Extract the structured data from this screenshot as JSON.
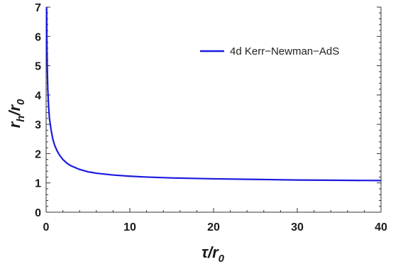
{
  "chart_data": {
    "type": "line",
    "xlabel": "τ/r",
    "xlabel_sub": "0",
    "ylabel": "r",
    "ylabel_sub_num": "h",
    "ylabel_mid": "/r",
    "ylabel_sub_den": "0",
    "xlim": [
      0,
      40
    ],
    "ylim": [
      0,
      7
    ],
    "x_ticks": [
      0,
      10,
      20,
      30,
      40
    ],
    "x_tick_labels": [
      "0",
      "10",
      "20",
      "30",
      "40"
    ],
    "y_ticks": [
      0,
      1,
      2,
      3,
      4,
      5,
      6,
      7
    ],
    "y_tick_labels": [
      "0",
      "1",
      "2",
      "3",
      "4",
      "5",
      "6",
      "7"
    ],
    "grid": false,
    "legend_position": "top-right",
    "series": [
      {
        "name": "4d Kerr−Newman−AdS",
        "color": "#1a1adf",
        "x": [
          0.06,
          0.1,
          0.15,
          0.2,
          0.3,
          0.4,
          0.5,
          0.6,
          0.8,
          1.0,
          1.3,
          1.6,
          2.0,
          2.5,
          3.0,
          4.0,
          5.0,
          6.0,
          8.0,
          10.0,
          12.0,
          15.0,
          20.0,
          25.0,
          30.0,
          35.0,
          40.0
        ],
        "y": [
          7.0,
          5.6,
          4.8,
          4.2,
          3.6,
          3.2,
          3.0,
          2.8,
          2.5,
          2.3,
          2.1,
          1.95,
          1.8,
          1.67,
          1.58,
          1.46,
          1.38,
          1.33,
          1.27,
          1.23,
          1.2,
          1.17,
          1.14,
          1.12,
          1.1,
          1.09,
          1.08
        ]
      }
    ]
  }
}
